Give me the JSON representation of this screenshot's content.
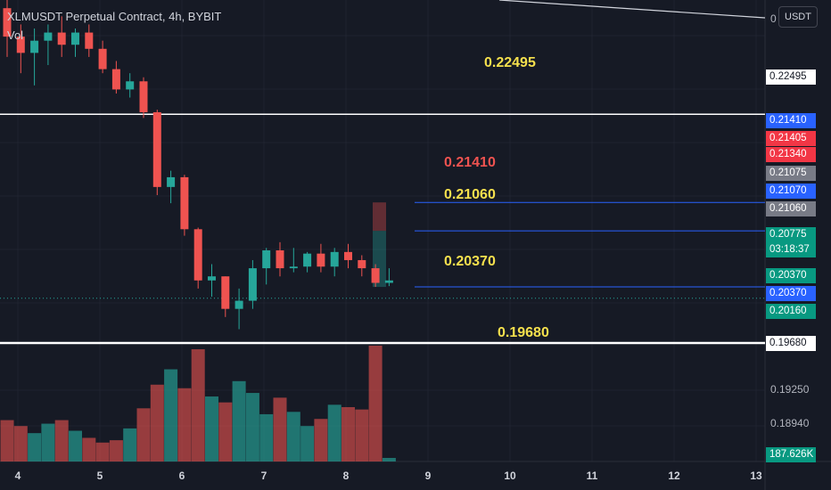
{
  "header": {
    "symbol_line": "XLMUSDT Perpetual Contract, 4h, BYBIT",
    "volume_label": "Vol"
  },
  "currency_button": "USDT",
  "top_axis_tick": "0",
  "level_annotations": [
    {
      "text": "0.22495",
      "color": "#f5e04d"
    },
    {
      "text": "0.21410",
      "color": "#ef5350"
    },
    {
      "text": "0.21060",
      "color": "#f5e04d"
    },
    {
      "text": "0.20370",
      "color": "#f5e04d"
    },
    {
      "text": "0.19680",
      "color": "#f5e04d"
    }
  ],
  "price_labels": [
    {
      "text": "0.22495",
      "bg": "#ffffff",
      "fg": "#131722"
    },
    {
      "text": "0.21410",
      "bg": "#2962ff",
      "fg": "#ffffff"
    },
    {
      "text": "0.21405",
      "bg": "#f23645",
      "fg": "#ffffff"
    },
    {
      "text": "0.21340",
      "bg": "#f23645",
      "fg": "#ffffff"
    },
    {
      "text": "0.21075",
      "bg": "#787b86",
      "fg": "#ffffff"
    },
    {
      "text": "0.21070",
      "bg": "#2962ff",
      "fg": "#ffffff"
    },
    {
      "text": "0.21060",
      "bg": "#787b86",
      "fg": "#ffffff"
    },
    {
      "text": "0.20775",
      "bg": "#089981",
      "fg": "#ffffff"
    },
    {
      "text": "03:18:37",
      "bg": "#089981",
      "fg": "#ffffff"
    },
    {
      "text": "0.20370",
      "bg": "#089981",
      "fg": "#ffffff"
    },
    {
      "text": "0.20370",
      "bg": "#2962ff",
      "fg": "#ffffff"
    },
    {
      "text": "0.20160",
      "bg": "#089981",
      "fg": "#ffffff"
    },
    {
      "text": "0.19680",
      "bg": "#ffffff",
      "fg": "#131722"
    },
    {
      "text": "187.626K",
      "bg": "#089981",
      "fg": "#ffffff"
    }
  ],
  "axis_ticks": [
    "0.19250",
    "0.18940"
  ],
  "date_labels": [
    "4",
    "5",
    "6",
    "7",
    "8",
    "9",
    "10",
    "11",
    "12",
    "13"
  ],
  "chart_data": {
    "type": "candlestick",
    "colors": {
      "up": "#26a69a",
      "down": "#ef5350",
      "vol_up": "#26a69a",
      "vol_down": "#ef5350"
    },
    "candles": [
      {
        "o": 0.238,
        "h": 0.24,
        "l": 0.232,
        "c": 0.2345
      },
      {
        "o": 0.2345,
        "h": 0.236,
        "l": 0.23,
        "c": 0.2325
      },
      {
        "o": 0.2325,
        "h": 0.2355,
        "l": 0.2285,
        "c": 0.234
      },
      {
        "o": 0.234,
        "h": 0.236,
        "l": 0.231,
        "c": 0.235
      },
      {
        "o": 0.235,
        "h": 0.237,
        "l": 0.232,
        "c": 0.2335
      },
      {
        "o": 0.2335,
        "h": 0.2355,
        "l": 0.232,
        "c": 0.235
      },
      {
        "o": 0.235,
        "h": 0.236,
        "l": 0.232,
        "c": 0.233
      },
      {
        "o": 0.233,
        "h": 0.234,
        "l": 0.23,
        "c": 0.2305
      },
      {
        "o": 0.2305,
        "h": 0.2315,
        "l": 0.2275,
        "c": 0.228
      },
      {
        "o": 0.228,
        "h": 0.23,
        "l": 0.227,
        "c": 0.229
      },
      {
        "o": 0.229,
        "h": 0.2295,
        "l": 0.2245,
        "c": 0.2252
      },
      {
        "o": 0.2252,
        "h": 0.2255,
        "l": 0.215,
        "c": 0.216
      },
      {
        "o": 0.216,
        "h": 0.218,
        "l": 0.214,
        "c": 0.2172
      },
      {
        "o": 0.2172,
        "h": 0.2175,
        "l": 0.21,
        "c": 0.2108
      },
      {
        "o": 0.2108,
        "h": 0.211,
        "l": 0.2035,
        "c": 0.2045
      },
      {
        "o": 0.2045,
        "h": 0.2065,
        "l": 0.2025,
        "c": 0.205
      },
      {
        "o": 0.205,
        "h": 0.205,
        "l": 0.2,
        "c": 0.201
      },
      {
        "o": 0.201,
        "h": 0.2035,
        "l": 0.1985,
        "c": 0.202
      },
      {
        "o": 0.202,
        "h": 0.207,
        "l": 0.201,
        "c": 0.206
      },
      {
        "o": 0.206,
        "h": 0.2085,
        "l": 0.204,
        "c": 0.2082
      },
      {
        "o": 0.2082,
        "h": 0.2092,
        "l": 0.205,
        "c": 0.206
      },
      {
        "o": 0.206,
        "h": 0.2085,
        "l": 0.2055,
        "c": 0.2062
      },
      {
        "o": 0.2062,
        "h": 0.208,
        "l": 0.2055,
        "c": 0.2078
      },
      {
        "o": 0.2078,
        "h": 0.209,
        "l": 0.2055,
        "c": 0.2062
      },
      {
        "o": 0.2062,
        "h": 0.2085,
        "l": 0.205,
        "c": 0.208
      },
      {
        "o": 0.208,
        "h": 0.209,
        "l": 0.206,
        "c": 0.207
      },
      {
        "o": 0.207,
        "h": 0.2076,
        "l": 0.205,
        "c": 0.206
      },
      {
        "o": 0.206,
        "h": 0.2065,
        "l": 0.2037,
        "c": 0.2042
      },
      {
        "o": 0.2042,
        "h": 0.206,
        "l": 0.2038,
        "c": 0.2045
      }
    ],
    "volumes": [
      35,
      30,
      24,
      32,
      35,
      26,
      20,
      16,
      18,
      28,
      45,
      65,
      78,
      62,
      95,
      55,
      50,
      68,
      58,
      40,
      54,
      42,
      30,
      36,
      48,
      46,
      44,
      98,
      3
    ],
    "horizontal_levels": [
      0.22495,
      0.2141,
      0.2106,
      0.2037,
      0.1968
    ],
    "yrange": [
      0.1968,
      0.2412
    ]
  }
}
